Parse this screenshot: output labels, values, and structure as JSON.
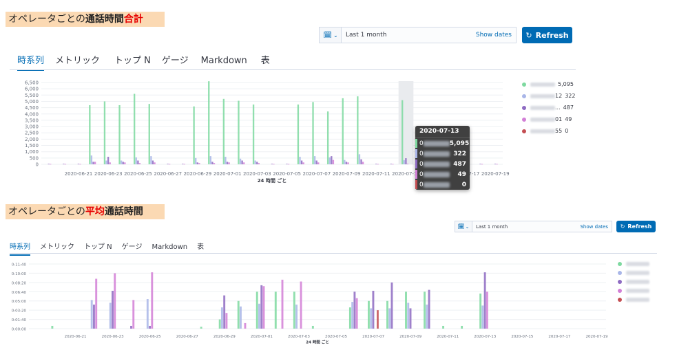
{
  "banner1": {
    "part1": "オペレータごとの",
    "part2": "通話時間",
    "part3": "合計"
  },
  "banner2": {
    "part1": "オペレータごとの",
    "part2": "平均",
    "part3": "通話時間"
  },
  "toolbar": {
    "time_range": "Last 1 month",
    "show_dates": "Show dates",
    "refresh_label": "Refresh"
  },
  "tabs": [
    {
      "label": "時系列",
      "active": true
    },
    {
      "label": "メトリック"
    },
    {
      "label": "トップ N"
    },
    {
      "label": "ゲージ"
    },
    {
      "label": "Markdown"
    },
    {
      "label": "表"
    }
  ],
  "colors": {
    "series": [
      "#7ed9a0",
      "#a9b6e8",
      "#8e6bc2",
      "#d27fd6",
      "#c44e52"
    ],
    "accent": "#006bb4",
    "banner_bg": "#fbd9b3"
  },
  "chart_data": [
    {
      "type": "bar",
      "xlabel": "24 時間 ごと",
      "x_tick_labels": [
        "2020-06-21",
        "2020-06-23",
        "2020-06-25",
        "2020-06-27",
        "2020-06-29",
        "2020-07-01",
        "2020-07-03",
        "2020-07-05",
        "2020-07-07",
        "2020-07-09",
        "2020-07-11",
        "2020-07-13",
        "2020-07-15",
        "2020-07-17",
        "2020-07-19"
      ],
      "categories": [
        "2020-06-19",
        "2020-06-20",
        "2020-06-21",
        "2020-06-22",
        "2020-06-23",
        "2020-06-24",
        "2020-06-25",
        "2020-06-26",
        "2020-06-27",
        "2020-06-28",
        "2020-06-29",
        "2020-06-30",
        "2020-07-01",
        "2020-07-02",
        "2020-07-03",
        "2020-07-04",
        "2020-07-05",
        "2020-07-06",
        "2020-07-07",
        "2020-07-08",
        "2020-07-09",
        "2020-07-10",
        "2020-07-11",
        "2020-07-12",
        "2020-07-13",
        "2020-07-14",
        "2020-07-15",
        "2020-07-16",
        "2020-07-17",
        "2020-07-18",
        "2020-07-19"
      ],
      "ylim": [
        0,
        6500
      ],
      "y_tick_labels": [
        "0",
        "500",
        "1,000",
        "1,500",
        "2,000",
        "2,500",
        "3,000",
        "3,500",
        "4,000",
        "4,500",
        "5,000",
        "5,500",
        "6,000",
        "6,500"
      ],
      "series": [
        {
          "values": [
            0,
            0,
            0,
            4700,
            5000,
            4700,
            5600,
            4800,
            0,
            0,
            4600,
            6600,
            5200,
            5050,
            4750,
            0,
            0,
            4750,
            4950,
            4200,
            5250,
            5400,
            0,
            0,
            5095,
            0,
            0,
            0,
            0,
            0,
            0
          ]
        },
        {
          "values": [
            0,
            0,
            0,
            700,
            300,
            300,
            550,
            650,
            0,
            0,
            500,
            650,
            600,
            450,
            300,
            0,
            0,
            600,
            650,
            550,
            350,
            800,
            0,
            0,
            322,
            0,
            0,
            0,
            0,
            0,
            0
          ]
        },
        {
          "values": [
            40,
            40,
            40,
            200,
            600,
            200,
            300,
            300,
            40,
            40,
            150,
            200,
            200,
            300,
            200,
            40,
            40,
            300,
            300,
            650,
            200,
            400,
            40,
            40,
            487,
            40,
            40,
            40,
            40,
            40,
            40
          ]
        },
        {
          "values": [
            30,
            30,
            30,
            200,
            150,
            150,
            100,
            150,
            30,
            30,
            100,
            100,
            150,
            150,
            100,
            30,
            30,
            150,
            150,
            350,
            150,
            200,
            30,
            30,
            49,
            30,
            30,
            30,
            30,
            30,
            30
          ]
        },
        {
          "values": [
            0,
            0,
            0,
            0,
            0,
            0,
            0,
            0,
            0,
            0,
            0,
            0,
            0,
            0,
            0,
            0,
            0,
            0,
            0,
            0,
            0,
            0,
            0,
            0,
            0,
            0,
            0,
            0,
            0,
            0,
            0
          ]
        }
      ],
      "legend": {
        "placement": "right",
        "values": [
          "5,095",
          "322",
          "487",
          "49",
          "0"
        ],
        "name_suffixes": [
          "",
          "12",
          "...",
          "01",
          "55"
        ]
      },
      "tooltip": {
        "title": "2020-07-13",
        "values": [
          "5,095",
          "322",
          "487",
          "49",
          "0"
        ],
        "prefixes": [
          "0",
          "0",
          "0",
          "0",
          "0"
        ]
      },
      "highlight_category": "2020-07-13"
    },
    {
      "type": "bar",
      "xlabel": "24 時間 ごと",
      "x_tick_labels": [
        "2020-06-21",
        "2020-06-23",
        "2020-06-25",
        "2020-06-27",
        "2020-06-29",
        "2020-07-01",
        "2020-07-03",
        "2020-07-05",
        "2020-07-07",
        "2020-07-09",
        "2020-07-11",
        "2020-07-13",
        "2020-07-15",
        "2020-07-17",
        "2020-07-19"
      ],
      "categories": [
        "2020-06-19",
        "2020-06-20",
        "2020-06-21",
        "2020-06-22",
        "2020-06-23",
        "2020-06-24",
        "2020-06-25",
        "2020-06-26",
        "2020-06-27",
        "2020-06-28",
        "2020-06-29",
        "2020-06-30",
        "2020-07-01",
        "2020-07-02",
        "2020-07-03",
        "2020-07-04",
        "2020-07-05",
        "2020-07-06",
        "2020-07-07",
        "2020-07-08",
        "2020-07-09",
        "2020-07-10",
        "2020-07-11",
        "2020-07-12",
        "2020-07-13",
        "2020-07-14",
        "2020-07-15",
        "2020-07-16",
        "2020-07-17",
        "2020-07-18",
        "2020-07-19"
      ],
      "ylim": [
        0,
        700
      ],
      "y_tick_labels": [
        "0:00:00",
        "0:01:40",
        "0:03:20",
        "0:05:00",
        "0:06:40",
        "0:08:20",
        "0:10:00",
        "0:11:40"
      ],
      "series": [
        {
          "values": [
            0,
            30,
            0,
            0,
            0,
            0,
            0,
            0,
            0,
            20,
            100,
            300,
            400,
            400,
            400,
            30,
            0,
            230,
            300,
            300,
            400,
            400,
            30,
            30,
            380,
            0,
            0,
            0,
            0,
            0,
            0
          ]
        },
        {
          "values": [
            0,
            0,
            0,
            310,
            280,
            0,
            320,
            0,
            0,
            0,
            230,
            240,
            270,
            0,
            260,
            0,
            0,
            290,
            220,
            220,
            280,
            260,
            0,
            0,
            250,
            0,
            0,
            0,
            0,
            0,
            0
          ]
        },
        {
          "values": [
            0,
            0,
            0,
            260,
            410,
            30,
            30,
            0,
            0,
            0,
            360,
            0,
            470,
            0,
            0,
            0,
            0,
            400,
            410,
            500,
            220,
            420,
            0,
            0,
            610,
            0,
            0,
            0,
            0,
            0,
            0
          ]
        },
        {
          "values": [
            0,
            0,
            0,
            540,
            600,
            310,
            610,
            0,
            0,
            0,
            170,
            60,
            460,
            530,
            510,
            0,
            0,
            330,
            0,
            0,
            0,
            0,
            0,
            0,
            400,
            0,
            0,
            0,
            0,
            0,
            0
          ]
        },
        {
          "values": [
            0,
            0,
            0,
            0,
            0,
            0,
            0,
            0,
            0,
            0,
            0,
            0,
            0,
            0,
            0,
            0,
            0,
            0,
            200,
            0,
            0,
            0,
            0,
            0,
            0,
            0,
            0,
            0,
            0,
            0,
            0
          ]
        }
      ],
      "legend": {
        "placement": "right"
      }
    }
  ]
}
